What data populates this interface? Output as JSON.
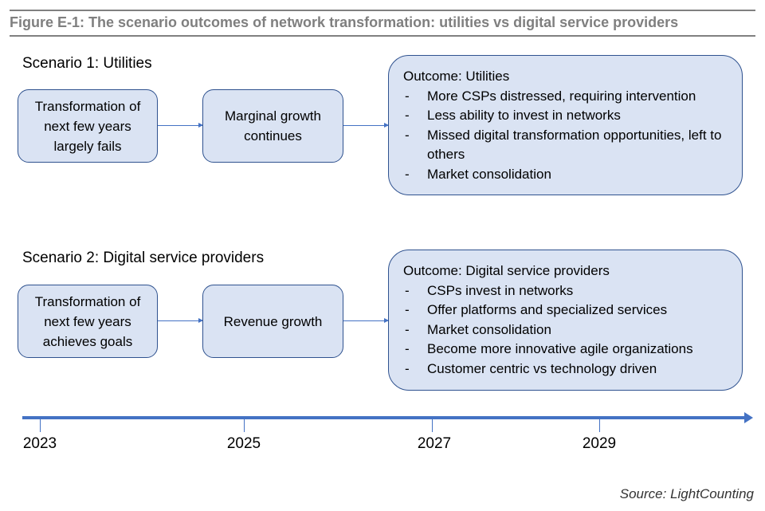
{
  "title": "Figure E-1: The scenario outcomes of network transformation: utilities vs digital service providers",
  "scenario1": {
    "label": "Scenario 1: Utilities",
    "step1": "Transformation of next few years largely fails",
    "step2": "Marginal growth continues",
    "outcome_title": "Outcome: Utilities",
    "outcome_items": [
      "More CSPs distressed, requiring intervention",
      "Less ability to invest in networks",
      "Missed digital transformation opportunities, left to others",
      "Market consolidation"
    ]
  },
  "scenario2": {
    "label": "Scenario 2: Digital service providers",
    "step1": "Transformation of next few years achieves goals",
    "step2": "Revenue growth",
    "outcome_title": "Outcome: Digital service providers",
    "outcome_items": [
      "CSPs invest in networks",
      "Offer platforms and specialized services",
      "Market consolidation",
      "Become more innovative agile organizations",
      "Customer centric vs technology driven"
    ]
  },
  "timeline": {
    "years": [
      "2023",
      "2025",
      "2027",
      "2029"
    ]
  },
  "source": "Source: LightCounting",
  "colors": {
    "box_fill": "#dae3f3",
    "box_border": "#2f528f",
    "timeline": "#4472c4"
  }
}
